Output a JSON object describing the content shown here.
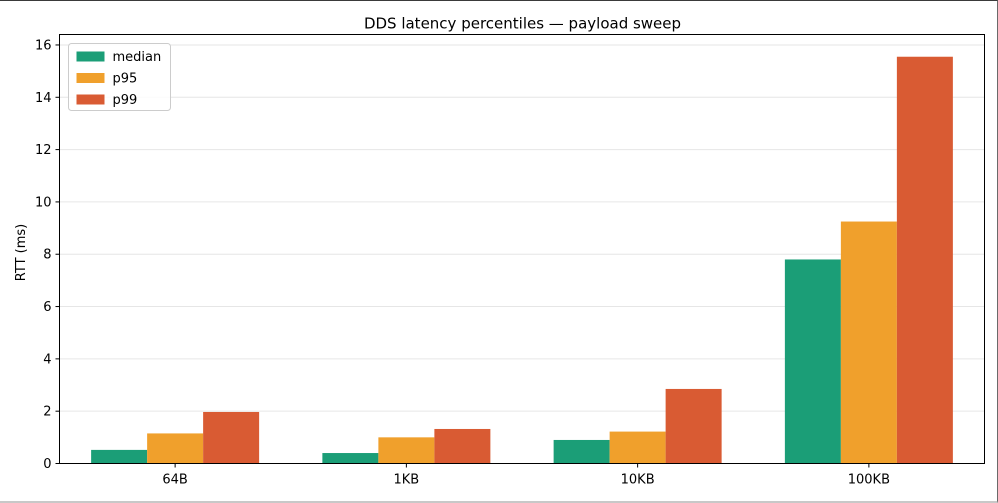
{
  "chart_data": {
    "type": "bar",
    "title": "DDS latency percentiles — payload sweep",
    "xlabel": "",
    "ylabel": "RTT (ms)",
    "categories": [
      "64B",
      "1KB",
      "10KB",
      "100KB"
    ],
    "series": [
      {
        "name": "median",
        "color": "#1b9e77",
        "values": [
          0.52,
          0.4,
          0.9,
          7.8
        ]
      },
      {
        "name": "p95",
        "color": "#f0a02c",
        "values": [
          1.15,
          1.0,
          1.22,
          9.25
        ]
      },
      {
        "name": "p99",
        "color": "#d95b33",
        "values": [
          1.97,
          1.32,
          2.85,
          15.55
        ]
      }
    ],
    "ylim": [
      0,
      16.4
    ],
    "yticks": [
      "0",
      "2",
      "4",
      "6",
      "8",
      "10",
      "12",
      "14",
      "16"
    ],
    "grid": "y",
    "legend_position": "top-left"
  }
}
